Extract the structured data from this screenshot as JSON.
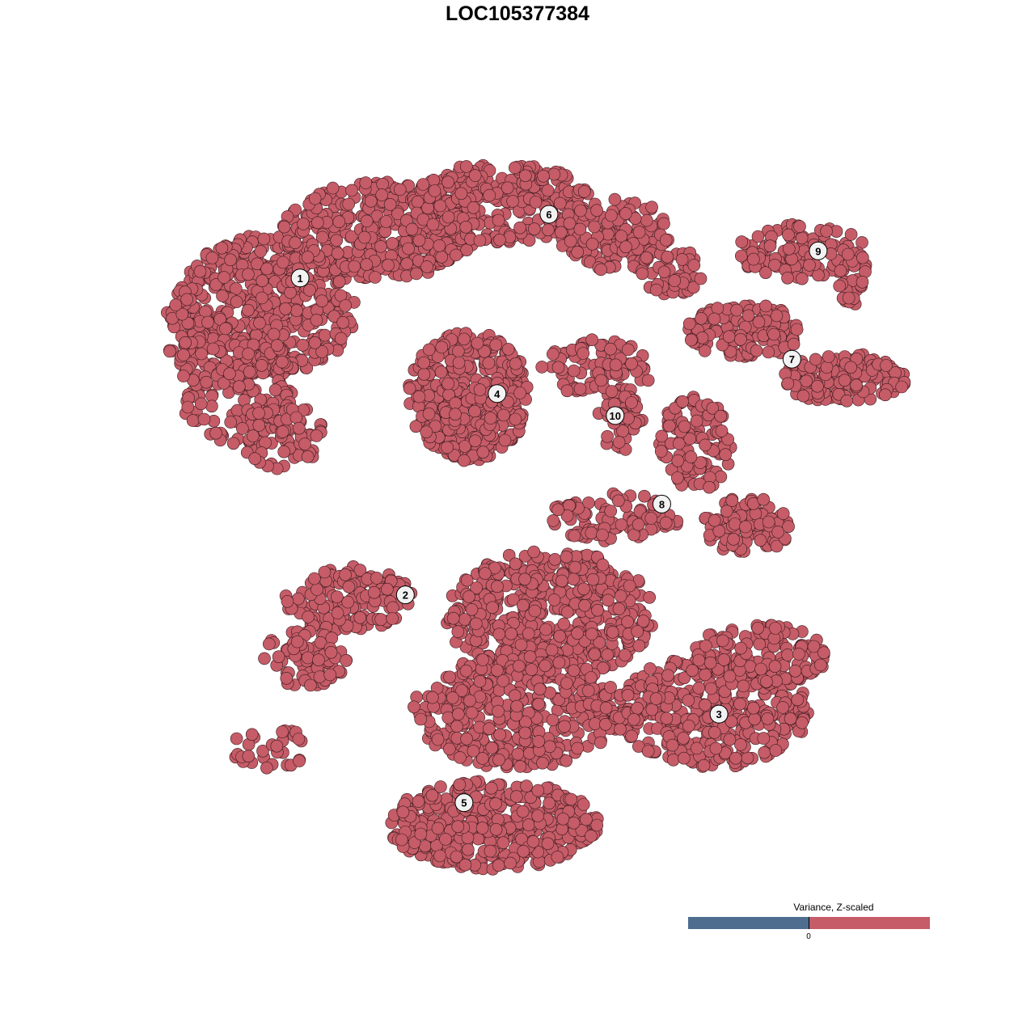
{
  "chart_data": {
    "type": "scatter",
    "title": "LOC105377384",
    "xlabel": "",
    "ylabel": "",
    "axes_visible": false,
    "grid": false,
    "point_color": "#c55c67",
    "point_edge_color": "#3a1a1e",
    "clusters": [
      {
        "label": "1",
        "x": -31.6,
        "y": 32.4
      },
      {
        "label": "2",
        "x": -17.6,
        "y": -10.9
      },
      {
        "label": "3",
        "x": 24.1,
        "y": -27.2
      },
      {
        "label": "4",
        "x": -5.4,
        "y": 16.6
      },
      {
        "label": "5",
        "x": -9.8,
        "y": -39.3
      },
      {
        "label": "6",
        "x": 1.5,
        "y": 41.1
      },
      {
        "label": "7",
        "x": 33.8,
        "y": 21.3
      },
      {
        "label": "8",
        "x": 16.5,
        "y": 1.5
      },
      {
        "label": "9",
        "x": 37.3,
        "y": 36.1
      },
      {
        "label": "10",
        "x": 10.3,
        "y": 13.6
      }
    ],
    "legend": {
      "title": "Variance, Z-scaled",
      "tick_label": "0",
      "low_color": "#4f6d8f",
      "high_color": "#c55c67",
      "placement": "bottom-right"
    }
  }
}
